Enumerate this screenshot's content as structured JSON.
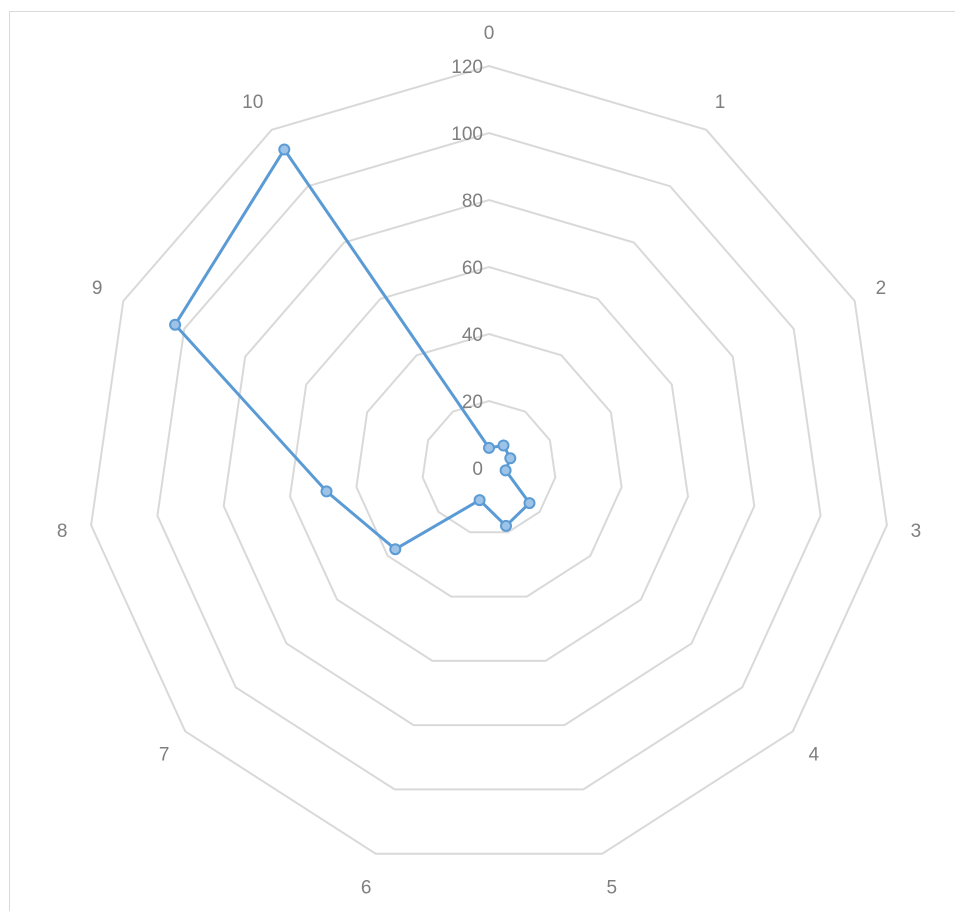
{
  "chart_data": {
    "type": "radar",
    "categories": [
      "0",
      "1",
      "2",
      "3",
      "4",
      "5",
      "6",
      "7",
      "8",
      "9",
      "10"
    ],
    "series": [
      {
        "values": [
          6,
          8,
          7,
          5,
          16,
          18,
          10,
          37,
          49,
          103,
          113
        ],
        "color": "#5b9bd5"
      }
    ],
    "rlim": [
      0,
      120
    ],
    "rticks": [
      "0",
      "20",
      "40",
      "60",
      "80",
      "100",
      "120"
    ],
    "grid": true,
    "legend": "none"
  }
}
